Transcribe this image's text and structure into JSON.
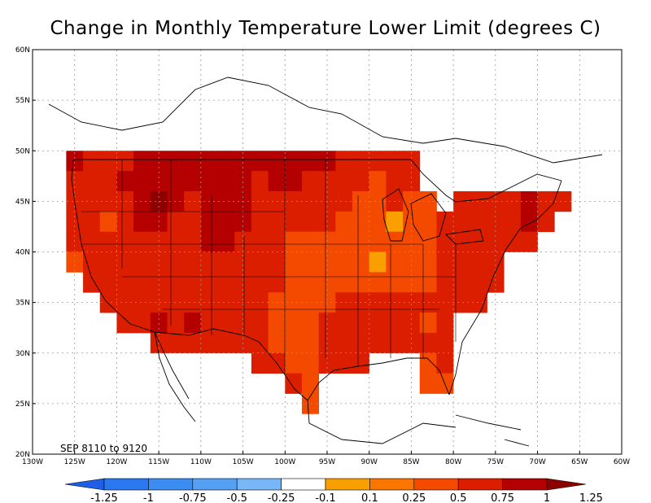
{
  "title": "Change in Monthly Temperature Lower Limit (degrees C)",
  "period_label": "SEP 8110 to 9120",
  "map": {
    "lon_range": [
      -130,
      -60
    ],
    "lat_range": [
      20,
      60
    ],
    "lon_ticks": [
      {
        "v": -130,
        "t": "130W"
      },
      {
        "v": -125,
        "t": "125W"
      },
      {
        "v": -120,
        "t": "120W"
      },
      {
        "v": -115,
        "t": "115W"
      },
      {
        "v": -110,
        "t": "110W"
      },
      {
        "v": -105,
        "t": "105W"
      },
      {
        "v": -100,
        "t": "100W"
      },
      {
        "v": -95,
        "t": "95W"
      },
      {
        "v": -90,
        "t": "90W"
      },
      {
        "v": -85,
        "t": "85W"
      },
      {
        "v": -80,
        "t": "80W"
      },
      {
        "v": -75,
        "t": "75W"
      },
      {
        "v": -70,
        "t": "70W"
      },
      {
        "v": -65,
        "t": "65W"
      },
      {
        "v": -60,
        "t": "60W"
      }
    ],
    "lat_ticks": [
      {
        "v": 20,
        "t": "20N"
      },
      {
        "v": 25,
        "t": "25N"
      },
      {
        "v": 30,
        "t": "30N"
      },
      {
        "v": 35,
        "t": "35N"
      },
      {
        "v": 40,
        "t": "40N"
      },
      {
        "v": 45,
        "t": "45N"
      },
      {
        "v": 50,
        "t": "50N"
      },
      {
        "v": 55,
        "t": "55N"
      },
      {
        "v": 60,
        "t": "60N"
      }
    ],
    "grid": true,
    "cell_size_deg": 2
  },
  "colorbar": {
    "labels": [
      "-1.25",
      "-1",
      "-0.75",
      "-0.5",
      "-0.25",
      "-0.1",
      "0.1",
      "0.25",
      "0.5",
      "0.75",
      "1",
      "1.25"
    ],
    "colors": [
      "#1f5fe8",
      "#2a78f0",
      "#3c8df2",
      "#55a0f5",
      "#78b6f8",
      "#ffffff",
      "#f9a000",
      "#fa7600",
      "#f44a00",
      "#dc1e00",
      "#b40000",
      "#8c0000"
    ]
  },
  "chart_data": {
    "type": "heatmap",
    "title": "Change in Monthly Temperature Lower Limit (degrees C)",
    "annotation": "SEP 8110 to 9120",
    "x_range": [
      -130,
      -60
    ],
    "y_range": [
      20,
      60
    ],
    "cell_size_deg": 2,
    "rows": [
      {
        "lat": 49,
        "cells": [
          [
            -125,
            4
          ],
          [
            -123,
            3
          ],
          [
            -121,
            3
          ],
          [
            -119,
            3
          ],
          [
            -117,
            4
          ],
          [
            -115,
            4
          ],
          [
            -113,
            4
          ],
          [
            -111,
            4
          ],
          [
            -109,
            4
          ],
          [
            -107,
            4
          ],
          [
            -105,
            4
          ],
          [
            -103,
            4
          ],
          [
            -101,
            4
          ],
          [
            -99,
            4
          ],
          [
            -97,
            4
          ],
          [
            -95,
            4
          ],
          [
            -93,
            3
          ],
          [
            -91,
            3
          ],
          [
            -89,
            3
          ],
          [
            -87,
            3
          ],
          [
            -85,
            3
          ]
        ]
      },
      {
        "lat": 47,
        "cells": [
          [
            -125,
            3
          ],
          [
            -123,
            3
          ],
          [
            -121,
            3
          ],
          [
            -119,
            4
          ],
          [
            -117,
            4
          ],
          [
            -115,
            4
          ],
          [
            -113,
            4
          ],
          [
            -111,
            4
          ],
          [
            -109,
            4
          ],
          [
            -107,
            4
          ],
          [
            -105,
            4
          ],
          [
            -103,
            3
          ],
          [
            -101,
            4
          ],
          [
            -99,
            4
          ],
          [
            -97,
            3
          ],
          [
            -95,
            3
          ],
          [
            -93,
            3
          ],
          [
            -91,
            3
          ],
          [
            -89,
            2
          ],
          [
            -87,
            3
          ],
          [
            -85,
            3
          ]
        ]
      },
      {
        "lat": 45,
        "cells": [
          [
            -125,
            3
          ],
          [
            -123,
            3
          ],
          [
            -121,
            3
          ],
          [
            -119,
            3
          ],
          [
            -117,
            4
          ],
          [
            -115,
            5
          ],
          [
            -113,
            4
          ],
          [
            -111,
            3
          ],
          [
            -109,
            4
          ],
          [
            -107,
            4
          ],
          [
            -105,
            4
          ],
          [
            -103,
            3
          ],
          [
            -101,
            3
          ],
          [
            -99,
            3
          ],
          [
            -97,
            3
          ],
          [
            -95,
            3
          ],
          [
            -93,
            3
          ],
          [
            -91,
            2
          ],
          [
            -89,
            2
          ],
          [
            -87,
            3
          ],
          [
            -85,
            2
          ],
          [
            -83,
            2
          ],
          [
            -79,
            3
          ],
          [
            -77,
            3
          ],
          [
            -75,
            3
          ],
          [
            -73,
            3
          ],
          [
            -71,
            4
          ],
          [
            -69,
            3
          ],
          [
            -67,
            3
          ]
        ]
      },
      {
        "lat": 43,
        "cells": [
          [
            -125,
            3
          ],
          [
            -123,
            3
          ],
          [
            -121,
            2
          ],
          [
            -119,
            3
          ],
          [
            -117,
            4
          ],
          [
            -115,
            4
          ],
          [
            -113,
            3
          ],
          [
            -111,
            3
          ],
          [
            -109,
            4
          ],
          [
            -107,
            4
          ],
          [
            -105,
            4
          ],
          [
            -103,
            3
          ],
          [
            -101,
            3
          ],
          [
            -99,
            3
          ],
          [
            -97,
            3
          ],
          [
            -95,
            3
          ],
          [
            -93,
            2
          ],
          [
            -91,
            2
          ],
          [
            -89,
            2
          ],
          [
            -87,
            0
          ],
          [
            -85,
            2
          ],
          [
            -83,
            2
          ],
          [
            -81,
            3
          ],
          [
            -79,
            3
          ],
          [
            -77,
            3
          ],
          [
            -75,
            3
          ],
          [
            -73,
            3
          ],
          [
            -71,
            4
          ],
          [
            -69,
            3
          ]
        ]
      },
      {
        "lat": 41,
        "cells": [
          [
            -125,
            3
          ],
          [
            -123,
            3
          ],
          [
            -121,
            3
          ],
          [
            -119,
            3
          ],
          [
            -117,
            3
          ],
          [
            -115,
            3
          ],
          [
            -113,
            3
          ],
          [
            -111,
            3
          ],
          [
            -109,
            4
          ],
          [
            -107,
            4
          ],
          [
            -105,
            3
          ],
          [
            -103,
            3
          ],
          [
            -101,
            3
          ],
          [
            -99,
            2
          ],
          [
            -97,
            2
          ],
          [
            -95,
            2
          ],
          [
            -93,
            2
          ],
          [
            -91,
            2
          ],
          [
            -89,
            2
          ],
          [
            -87,
            2
          ],
          [
            -85,
            2
          ],
          [
            -83,
            2
          ],
          [
            -81,
            3
          ],
          [
            -79,
            3
          ],
          [
            -77,
            3
          ],
          [
            -75,
            3
          ],
          [
            -73,
            3
          ],
          [
            -71,
            3
          ]
        ]
      },
      {
        "lat": 39,
        "cells": [
          [
            -125,
            2
          ],
          [
            -123,
            3
          ],
          [
            -121,
            3
          ],
          [
            -119,
            3
          ],
          [
            -117,
            3
          ],
          [
            -115,
            3
          ],
          [
            -113,
            3
          ],
          [
            -111,
            3
          ],
          [
            -109,
            3
          ],
          [
            -107,
            3
          ],
          [
            -105,
            3
          ],
          [
            -103,
            3
          ],
          [
            -101,
            3
          ],
          [
            -99,
            2
          ],
          [
            -97,
            2
          ],
          [
            -95,
            2
          ],
          [
            -93,
            2
          ],
          [
            -91,
            2
          ],
          [
            -89,
            0
          ],
          [
            -87,
            2
          ],
          [
            -85,
            2
          ],
          [
            -83,
            2
          ],
          [
            -81,
            3
          ],
          [
            -79,
            3
          ],
          [
            -77,
            3
          ],
          [
            -75,
            3
          ]
        ]
      },
      {
        "lat": 37,
        "cells": [
          [
            -123,
            3
          ],
          [
            -121,
            3
          ],
          [
            -119,
            3
          ],
          [
            -117,
            3
          ],
          [
            -115,
            3
          ],
          [
            -113,
            3
          ],
          [
            -111,
            3
          ],
          [
            -109,
            3
          ],
          [
            -107,
            3
          ],
          [
            -105,
            3
          ],
          [
            -103,
            3
          ],
          [
            -101,
            3
          ],
          [
            -99,
            2
          ],
          [
            -97,
            2
          ],
          [
            -95,
            2
          ],
          [
            -93,
            2
          ],
          [
            -91,
            2
          ],
          [
            -89,
            2
          ],
          [
            -87,
            2
          ],
          [
            -85,
            2
          ],
          [
            -83,
            2
          ],
          [
            -81,
            3
          ],
          [
            -79,
            3
          ],
          [
            -77,
            3
          ],
          [
            -75,
            3
          ]
        ]
      },
      {
        "lat": 35,
        "cells": [
          [
            -121,
            3
          ],
          [
            -119,
            3
          ],
          [
            -117,
            3
          ],
          [
            -115,
            3
          ],
          [
            -113,
            3
          ],
          [
            -111,
            3
          ],
          [
            -109,
            3
          ],
          [
            -107,
            3
          ],
          [
            -105,
            3
          ],
          [
            -103,
            3
          ],
          [
            -101,
            2
          ],
          [
            -99,
            2
          ],
          [
            -97,
            2
          ],
          [
            -95,
            2
          ],
          [
            -93,
            3
          ],
          [
            -91,
            3
          ],
          [
            -89,
            3
          ],
          [
            -87,
            3
          ],
          [
            -85,
            3
          ],
          [
            -83,
            3
          ],
          [
            -81,
            3
          ],
          [
            -79,
            3
          ],
          [
            -77,
            3
          ]
        ]
      },
      {
        "lat": 33,
        "cells": [
          [
            -119,
            3
          ],
          [
            -117,
            3
          ],
          [
            -115,
            4
          ],
          [
            -113,
            3
          ],
          [
            -111,
            4
          ],
          [
            -109,
            3
          ],
          [
            -107,
            3
          ],
          [
            -105,
            3
          ],
          [
            -103,
            3
          ],
          [
            -101,
            2
          ],
          [
            -99,
            2
          ],
          [
            -97,
            2
          ],
          [
            -95,
            3
          ],
          [
            -93,
            3
          ],
          [
            -91,
            3
          ],
          [
            -89,
            3
          ],
          [
            -87,
            3
          ],
          [
            -85,
            3
          ],
          [
            -83,
            2
          ],
          [
            -81,
            3
          ]
        ]
      },
      {
        "lat": 31,
        "cells": [
          [
            -115,
            3
          ],
          [
            -113,
            3
          ],
          [
            -111,
            3
          ],
          [
            -109,
            3
          ],
          [
            -107,
            3
          ],
          [
            -105,
            3
          ],
          [
            -103,
            3
          ],
          [
            -101,
            2
          ],
          [
            -99,
            2
          ],
          [
            -97,
            2
          ],
          [
            -95,
            3
          ],
          [
            -93,
            3
          ],
          [
            -91,
            3
          ],
          [
            -89,
            3
          ],
          [
            -87,
            3
          ],
          [
            -85,
            3
          ],
          [
            -83,
            3
          ],
          [
            -81,
            3
          ]
        ]
      },
      {
        "lat": 29,
        "cells": [
          [
            -103,
            3
          ],
          [
            -101,
            3
          ],
          [
            -99,
            2
          ],
          [
            -97,
            2
          ],
          [
            -95,
            3
          ],
          [
            -93,
            3
          ],
          [
            -91,
            3
          ],
          [
            -83,
            2
          ],
          [
            -81,
            3
          ]
        ]
      },
      {
        "lat": 27,
        "cells": [
          [
            -99,
            3
          ],
          [
            -97,
            2
          ],
          [
            -83,
            2
          ],
          [
            -81,
            2
          ]
        ]
      },
      {
        "lat": 25,
        "cells": [
          [
            -97,
            2
          ]
        ]
      }
    ]
  }
}
